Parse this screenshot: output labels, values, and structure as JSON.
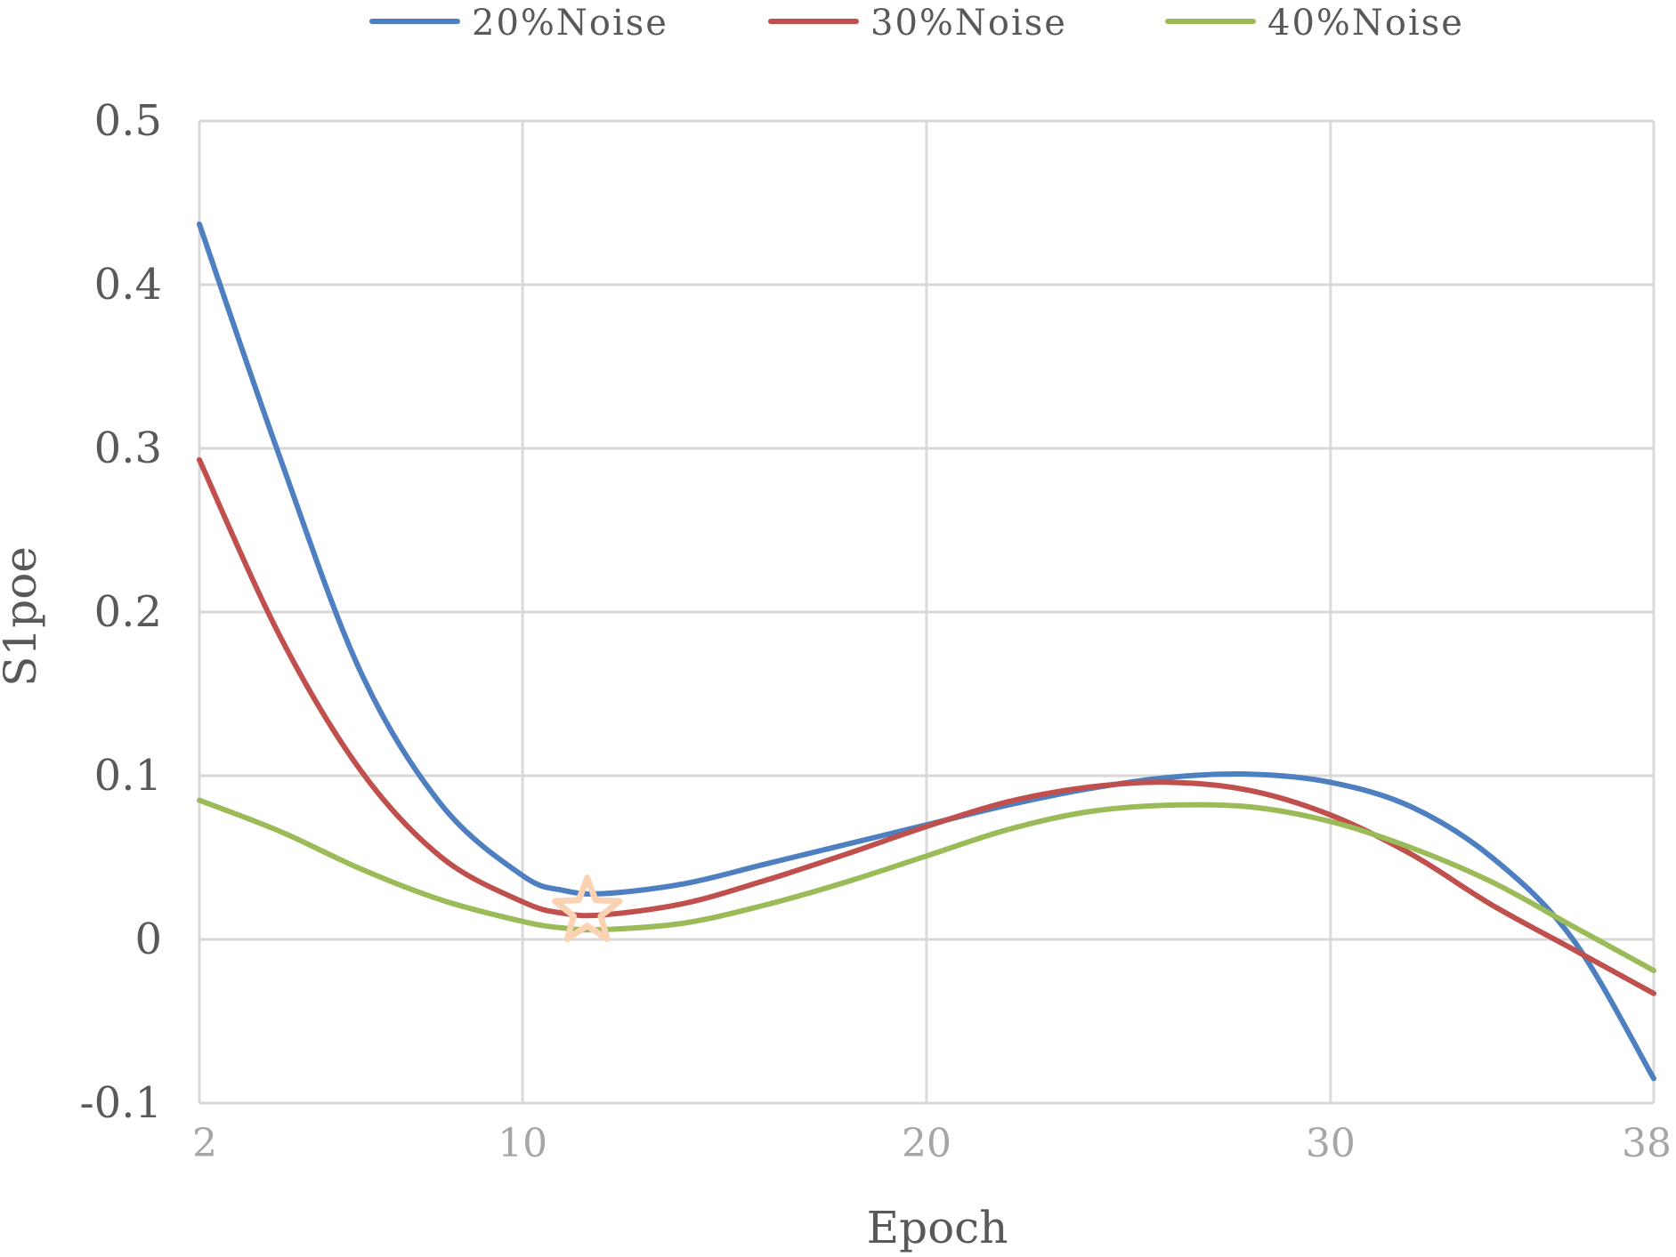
{
  "chart_data": {
    "type": "line",
    "title": "",
    "xlabel": "Epoch",
    "ylabel": "S1poe",
    "xlim": [
      2,
      38
    ],
    "ylim": [
      -0.1,
      0.5
    ],
    "x_ticks": [
      "2",
      "10",
      "20",
      "30",
      "38"
    ],
    "y_ticks": [
      "-0.1",
      "0",
      "0.1",
      "0.2",
      "0.3",
      "0.4",
      "0.5"
    ],
    "grid": true,
    "legend_position": "top",
    "series": [
      {
        "name": "20%Noise",
        "color": "#4e7fc0",
        "x": [
          2,
          4,
          6,
          8,
          10,
          11,
          12,
          14,
          16,
          18,
          20,
          22,
          24,
          26,
          28,
          30,
          32,
          34,
          36,
          38
        ],
        "y": [
          0.437,
          0.294,
          0.163,
          0.082,
          0.039,
          0.03,
          0.028,
          0.034,
          0.046,
          0.058,
          0.07,
          0.082,
          0.092,
          0.099,
          0.101,
          0.096,
          0.081,
          0.05,
          0.0,
          -0.085
        ]
      },
      {
        "name": "30%Noise",
        "color": "#c0504d",
        "x": [
          2,
          4,
          6,
          8,
          10,
          11,
          12,
          14,
          16,
          18,
          20,
          22,
          24,
          26,
          28,
          30,
          32,
          34,
          36,
          38
        ],
        "y": [
          0.293,
          0.185,
          0.103,
          0.05,
          0.023,
          0.016,
          0.015,
          0.022,
          0.036,
          0.052,
          0.069,
          0.084,
          0.093,
          0.096,
          0.091,
          0.076,
          0.052,
          0.021,
          -0.006,
          -0.033
        ]
      },
      {
        "name": "40%Noise",
        "color": "#9bbb59",
        "x": [
          2,
          4,
          6,
          8,
          10,
          11,
          12,
          14,
          16,
          18,
          20,
          22,
          24,
          26,
          28,
          30,
          32,
          34,
          36,
          38
        ],
        "y": [
          0.085,
          0.066,
          0.043,
          0.024,
          0.011,
          0.007,
          0.006,
          0.01,
          0.021,
          0.035,
          0.051,
          0.067,
          0.078,
          0.082,
          0.081,
          0.072,
          0.056,
          0.035,
          0.008,
          -0.019
        ]
      }
    ],
    "annotations": [
      {
        "type": "star-marker",
        "x": 11.6,
        "y": 0.017,
        "color": "#fbd3b3"
      }
    ]
  }
}
